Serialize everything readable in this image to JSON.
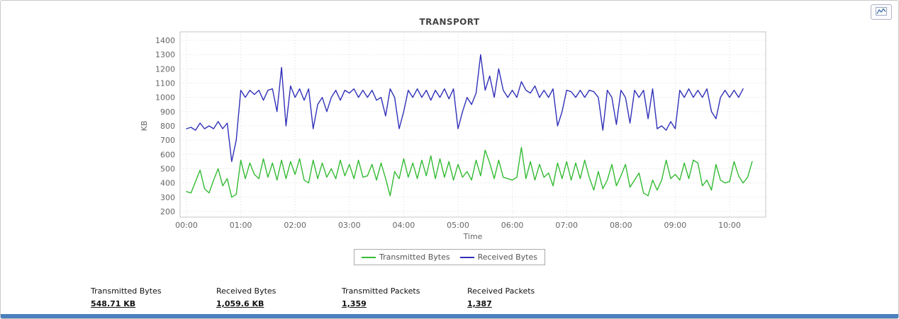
{
  "colors": {
    "transmitted": "#33bb33",
    "received": "#3030b8",
    "accent_bar": "#4b80bd"
  },
  "chart_data": {
    "type": "line",
    "title": "TRANSPORT",
    "xlabel": "Time",
    "ylabel": "KB",
    "ylim": [
      200,
      1400
    ],
    "y_tick_step": 100,
    "grid": true,
    "legend_position": "bottom",
    "x_ticks": [
      "00:00",
      "01:00",
      "02:00",
      "03:00",
      "04:00",
      "05:00",
      "06:00",
      "07:00",
      "08:00",
      "09:00",
      "10:00"
    ],
    "x_interval_minutes": 5,
    "x_range_minutes": [
      0,
      640
    ],
    "series": [
      {
        "name": "Transmitted Bytes",
        "color": "#33bb33",
        "values": [
          340,
          330,
          410,
          490,
          360,
          330,
          420,
          500,
          380,
          430,
          300,
          320,
          560,
          430,
          540,
          460,
          430,
          570,
          440,
          540,
          420,
          560,
          430,
          550,
          460,
          570,
          420,
          400,
          560,
          430,
          540,
          440,
          500,
          430,
          560,
          450,
          530,
          430,
          560,
          440,
          450,
          530,
          420,
          540,
          430,
          310,
          480,
          430,
          570,
          440,
          540,
          430,
          560,
          450,
          590,
          430,
          570,
          440,
          550,
          420,
          530,
          440,
          480,
          420,
          560,
          450,
          630,
          540,
          430,
          560,
          440,
          430,
          420,
          440,
          650,
          430,
          550,
          420,
          530,
          440,
          470,
          380,
          540,
          430,
          550,
          420,
          540,
          430,
          560,
          440,
          350,
          480,
          360,
          420,
          530,
          380,
          450,
          530,
          370,
          420,
          470,
          330,
          310,
          420,
          350,
          420,
          560,
          430,
          460,
          420,
          540,
          430,
          560,
          540,
          380,
          420,
          350,
          530,
          420,
          400,
          410,
          550,
          450,
          400,
          440,
          550
        ]
      },
      {
        "name": "Received Bytes",
        "color": "#3030b8",
        "values": [
          780,
          790,
          770,
          820,
          780,
          800,
          780,
          830,
          780,
          820,
          550,
          700,
          1050,
          1000,
          1050,
          1020,
          1050,
          980,
          1050,
          1060,
          900,
          1210,
          800,
          1080,
          1000,
          1060,
          980,
          1060,
          780,
          950,
          1000,
          900,
          1000,
          1050,
          980,
          1050,
          1030,
          1060,
          1000,
          1050,
          1000,
          1050,
          980,
          1000,
          870,
          1060,
          1000,
          780,
          900,
          1050,
          1000,
          1060,
          1000,
          1050,
          980,
          1050,
          1000,
          1060,
          990,
          1060,
          780,
          900,
          1000,
          950,
          1030,
          1300,
          1050,
          1150,
          1000,
          1200,
          1050,
          1000,
          1050,
          1000,
          1110,
          1050,
          1030,
          1080,
          1000,
          1050,
          1000,
          1060,
          800,
          900,
          1050,
          1040,
          1000,
          1050,
          1000,
          1050,
          1040,
          1000,
          770,
          1050,
          1000,
          810,
          1050,
          1000,
          820,
          1050,
          1000,
          1050,
          850,
          1060,
          780,
          800,
          770,
          830,
          780,
          1050,
          1000,
          1060,
          1000,
          1050,
          1000,
          1060,
          900,
          850,
          1000,
          1050,
          1000,
          1050,
          1000,
          1060
        ]
      }
    ]
  },
  "stats": [
    {
      "label": "Transmitted Bytes",
      "value": "548.71 KB"
    },
    {
      "label": "Received Bytes",
      "value": "1,059.6 KB"
    },
    {
      "label": "Transmitted Packets",
      "value": "1,359"
    },
    {
      "label": "Received Packets",
      "value": "1,387"
    }
  ]
}
